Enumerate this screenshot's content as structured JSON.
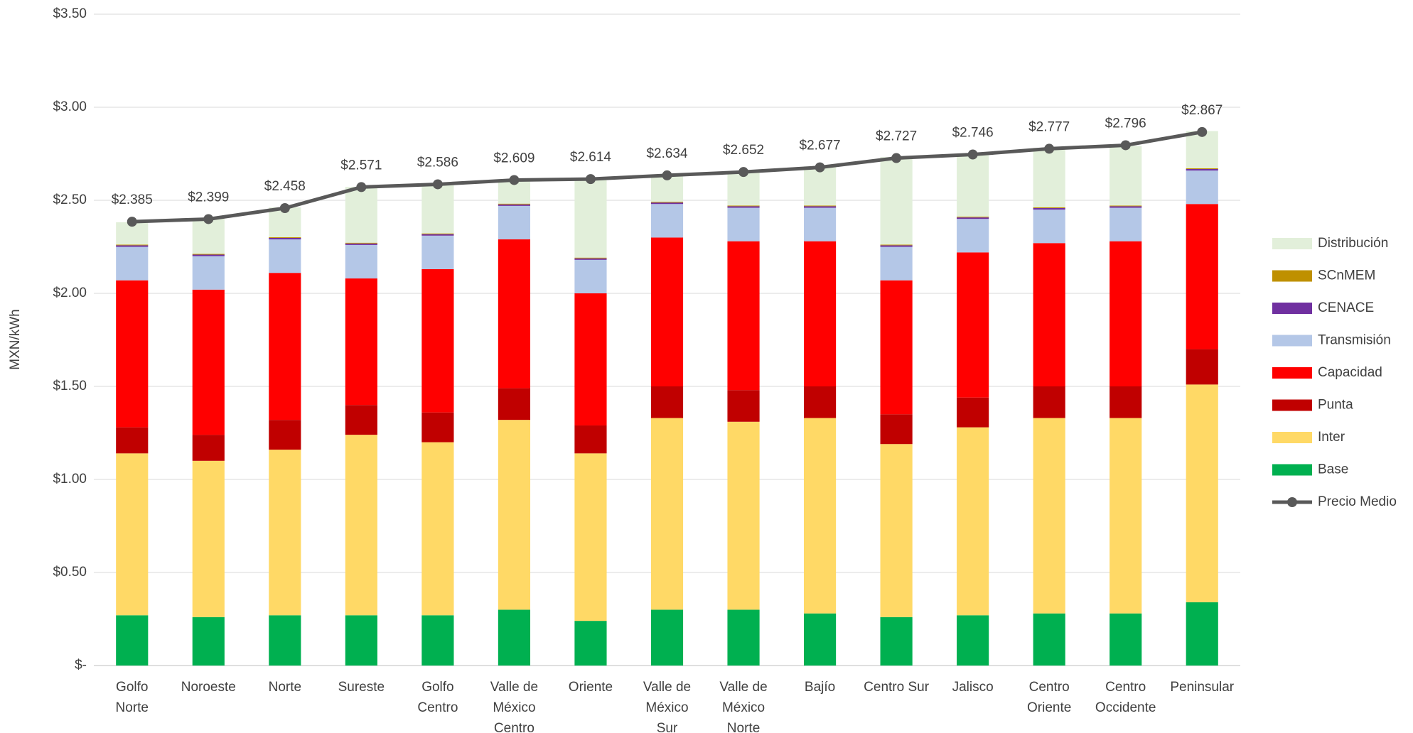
{
  "chart_data": {
    "type": "stacked-bar-line",
    "y_label": "MXN/kWh",
    "categories": [
      [
        "Golfo",
        "Norte"
      ],
      [
        "Noroeste"
      ],
      [
        "Norte"
      ],
      [
        "Sureste"
      ],
      [
        "Golfo",
        "Centro"
      ],
      [
        "Valle de",
        "México",
        "Centro"
      ],
      [
        "Oriente"
      ],
      [
        "Valle de",
        "México",
        "Sur"
      ],
      [
        "Valle de",
        "México",
        "Norte"
      ],
      [
        "Bajío"
      ],
      [
        "Centro Sur"
      ],
      [
        "Jalisco"
      ],
      [
        "Centro",
        "Oriente"
      ],
      [
        "Centro",
        "Occidente"
      ],
      [
        "Peninsular"
      ]
    ],
    "ylim": [
      0,
      3.5
    ],
    "yticks": [
      {
        "value": 0,
        "label": "$-"
      },
      {
        "value": 0.5,
        "label": "$0.50"
      },
      {
        "value": 1,
        "label": "$1.00"
      },
      {
        "value": 1.5,
        "label": "$1.50"
      },
      {
        "value": 2,
        "label": "$2.00"
      },
      {
        "value": 2.5,
        "label": "$2.50"
      },
      {
        "value": 3,
        "label": "$3.00"
      },
      {
        "value": 3.5,
        "label": "$3.50"
      }
    ],
    "grid": true,
    "legend": "right",
    "series": [
      {
        "name": "Base",
        "type": "bar",
        "color": "#00b050",
        "values": [
          0.27,
          0.26,
          0.27,
          0.27,
          0.27,
          0.3,
          0.24,
          0.3,
          0.3,
          0.28,
          0.26,
          0.27,
          0.28,
          0.28,
          0.34
        ]
      },
      {
        "name": "Inter",
        "type": "bar",
        "color": "#ffd966",
        "values": [
          0.87,
          0.84,
          0.89,
          0.97,
          0.93,
          1.02,
          0.9,
          1.03,
          1.01,
          1.05,
          0.93,
          1.01,
          1.05,
          1.05,
          1.17
        ]
      },
      {
        "name": "Punta",
        "type": "bar",
        "color": "#c00000",
        "values": [
          0.14,
          0.14,
          0.16,
          0.16,
          0.16,
          0.17,
          0.15,
          0.17,
          0.17,
          0.17,
          0.16,
          0.16,
          0.17,
          0.17,
          0.19
        ]
      },
      {
        "name": "Capacidad",
        "type": "bar",
        "color": "#ff0000",
        "values": [
          0.79,
          0.78,
          0.79,
          0.68,
          0.77,
          0.8,
          0.71,
          0.8,
          0.8,
          0.78,
          0.72,
          0.78,
          0.77,
          0.78,
          0.78
        ]
      },
      {
        "name": "Transmisión",
        "type": "bar",
        "color": "#b4c7e7",
        "values": [
          0.18,
          0.18,
          0.18,
          0.18,
          0.18,
          0.18,
          0.18,
          0.18,
          0.18,
          0.18,
          0.18,
          0.18,
          0.18,
          0.18,
          0.18
        ]
      },
      {
        "name": "CENACE",
        "type": "bar",
        "color": "#7030a0",
        "values": [
          0.008,
          0.008,
          0.008,
          0.008,
          0.008,
          0.008,
          0.008,
          0.008,
          0.008,
          0.008,
          0.008,
          0.008,
          0.008,
          0.008,
          0.008
        ]
      },
      {
        "name": "SCnMEM",
        "type": "bar",
        "color": "#bf9000",
        "values": [
          0.004,
          0.004,
          0.004,
          0.004,
          0.004,
          0.004,
          0.004,
          0.004,
          0.004,
          0.004,
          0.004,
          0.004,
          0.004,
          0.004,
          0.004
        ]
      },
      {
        "name": "Distribución",
        "type": "bar",
        "color": "#e2efda",
        "values": [
          0.12,
          0.19,
          0.16,
          0.3,
          0.26,
          0.13,
          0.42,
          0.14,
          0.18,
          0.21,
          0.47,
          0.33,
          0.32,
          0.32,
          0.2
        ]
      },
      {
        "name": "Precio Medio",
        "type": "line",
        "color": "#595959",
        "values": [
          2.385,
          2.399,
          2.458,
          2.571,
          2.586,
          2.609,
          2.614,
          2.634,
          2.652,
          2.677,
          2.727,
          2.746,
          2.777,
          2.796,
          2.867
        ],
        "value_labels": [
          "$2.385",
          "$2.399",
          "$2.458",
          "$2.571",
          "$2.586",
          "$2.609",
          "$2.614",
          "$2.634",
          "$2.652",
          "$2.677",
          "$2.727",
          "$2.746",
          "$2.777",
          "$2.796",
          "$2.867"
        ]
      }
    ]
  }
}
